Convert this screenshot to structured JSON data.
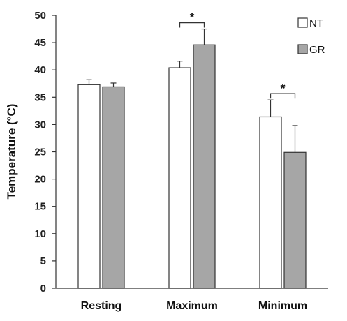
{
  "chart_data": {
    "type": "bar",
    "ylabel": "Temperature (°C)",
    "xlabel": "",
    "ylim": [
      0,
      50
    ],
    "yticks": [
      "0",
      "5",
      "10",
      "15",
      "20",
      "25",
      "30",
      "35",
      "40",
      "45",
      "50"
    ],
    "grid": false,
    "legend_position": "top-right",
    "categories": [
      "Resting",
      "Maximum",
      "Minimum"
    ],
    "series": [
      {
        "name": "NT",
        "color": "#ffffff",
        "values": [
          37.3,
          40.4,
          31.4
        ],
        "errors": [
          0.9,
          1.2,
          3.1
        ]
      },
      {
        "name": "GR",
        "color": "#a6a6a6",
        "values": [
          36.9,
          44.6,
          24.9
        ],
        "errors": [
          0.7,
          2.9,
          4.9
        ]
      }
    ],
    "significance": [
      {
        "category": "Maximum",
        "label": "*"
      },
      {
        "category": "Minimum",
        "label": "*"
      }
    ]
  }
}
